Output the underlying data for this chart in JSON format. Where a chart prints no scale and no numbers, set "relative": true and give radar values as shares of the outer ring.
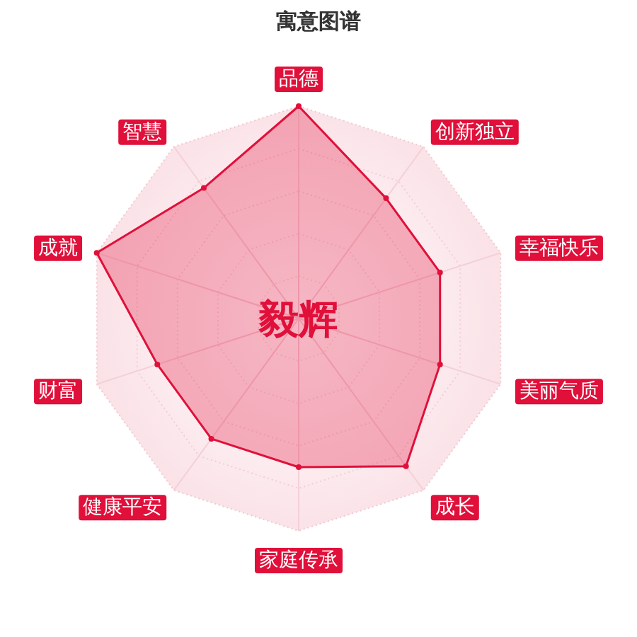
{
  "chart_data": {
    "type": "radar",
    "title": "寓意图谱",
    "categories": [
      "品德",
      "创新独立",
      "幸福快乐",
      "美丽气质",
      "成长",
      "家庭传承",
      "健康平安",
      "财富",
      "成就",
      "智慧"
    ],
    "relative": true,
    "marker": "circle",
    "series": [
      {
        "color": "#e0103a",
        "values": [
          1.0,
          0.7,
          0.7,
          0.7,
          0.86,
          0.7,
          0.7,
          0.7,
          1.0,
          0.76
        ]
      }
    ],
    "annotations": [
      "毅辉"
    ]
  }
}
